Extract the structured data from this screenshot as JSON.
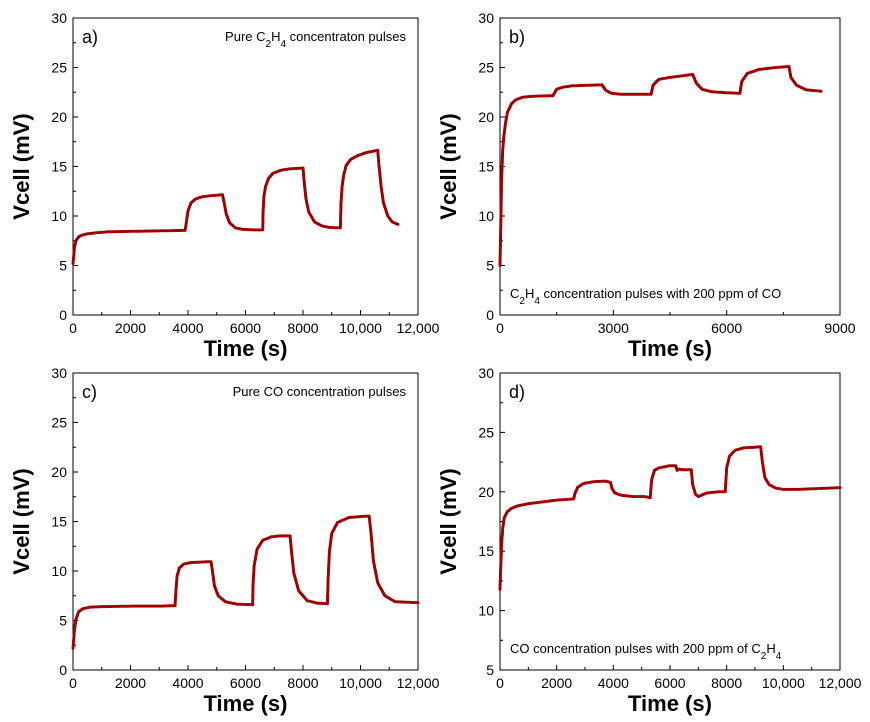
{
  "figure": {
    "series_color": "#a00000",
    "axis_color": "#000000"
  },
  "chart_data": [
    {
      "type": "scatter",
      "panel_label": "a)",
      "annotation": [
        {
          "t": "Pure C"
        },
        {
          "t": "2",
          "sub": true
        },
        {
          "t": "H"
        },
        {
          "t": "4",
          "sub": true
        },
        {
          "t": " concentraton pulses"
        }
      ],
      "annotation_pos": "top-right",
      "xlabel": "Time (s)",
      "ylabel": "Vcell (mV)",
      "xlim": [
        0,
        12000
      ],
      "ylim": [
        0,
        30
      ],
      "xticks": [
        0,
        2000,
        4000,
        6000,
        8000,
        10000,
        12000
      ],
      "xtick_labels": [
        "0",
        "2000",
        "4000",
        "6000",
        "8000",
        "10,000",
        "12,000"
      ],
      "xminor": true,
      "yticks": [
        0,
        5,
        10,
        15,
        20,
        25,
        30
      ],
      "ytick_labels": [
        "0",
        "5",
        "10",
        "15",
        "20",
        "25",
        "30"
      ],
      "yminor": true,
      "grid": false,
      "series": [
        {
          "color": "#a00000",
          "x": [
            0,
            50,
            100,
            200,
            300,
            500,
            800,
            1200,
            2000,
            3000,
            3900,
            3950,
            4000,
            4100,
            4250,
            4500,
            4800,
            5200,
            5260,
            5330,
            5450,
            5650,
            5900,
            6300,
            6600,
            6610,
            6640,
            6700,
            6800,
            6950,
            7200,
            7500,
            8000,
            8040,
            8100,
            8200,
            8400,
            8650,
            8900,
            9300,
            9320,
            9360,
            9420,
            9500,
            9650,
            9900,
            10200,
            10600,
            10640,
            10720,
            10800,
            10950,
            11100,
            11300
          ],
          "y": [
            5.2,
            6.8,
            7.5,
            7.9,
            8.05,
            8.2,
            8.3,
            8.4,
            8.45,
            8.5,
            8.55,
            9.5,
            10.5,
            11.3,
            11.7,
            11.95,
            12.05,
            12.15,
            11.3,
            10.2,
            9.3,
            8.8,
            8.65,
            8.6,
            8.6,
            10.3,
            12.0,
            13.0,
            13.8,
            14.3,
            14.6,
            14.75,
            14.85,
            13.5,
            11.8,
            10.4,
            9.4,
            9.0,
            8.85,
            8.8,
            11.2,
            13.0,
            14.2,
            15.1,
            15.7,
            16.1,
            16.4,
            16.65,
            15.2,
            12.9,
            11.3,
            10.0,
            9.4,
            9.15
          ]
        }
      ]
    },
    {
      "type": "scatter",
      "panel_label": "b)",
      "annotation": [
        {
          "t": "C"
        },
        {
          "t": "2",
          "sub": true
        },
        {
          "t": "H"
        },
        {
          "t": "4",
          "sub": true
        },
        {
          "t": " concentration pulses with 200 ppm of CO"
        }
      ],
      "annotation_pos": "bottom-left",
      "xlabel": "Time (s)",
      "ylabel": "Vcell (mV)",
      "xlim": [
        0,
        9000
      ],
      "ylim": [
        0,
        30
      ],
      "xticks": [
        0,
        3000,
        6000,
        9000
      ],
      "xtick_labels": [
        "0",
        "3000",
        "6000",
        "9000"
      ],
      "xminor": true,
      "yticks": [
        0,
        5,
        10,
        15,
        20,
        25,
        30
      ],
      "ytick_labels": [
        "0",
        "5",
        "10",
        "15",
        "20",
        "25",
        "30"
      ],
      "yminor": true,
      "grid": false,
      "series": [
        {
          "color": "#a00000",
          "x": [
            0,
            20,
            40,
            70,
            100,
            150,
            200,
            300,
            400,
            600,
            900,
            1400,
            1500,
            1650,
            1900,
            2300,
            2700,
            2800,
            2950,
            3200,
            3600,
            4000,
            4050,
            4200,
            4500,
            5100,
            5200,
            5350,
            5600,
            6000,
            6350,
            6400,
            6550,
            6850,
            7300,
            7650,
            7700,
            7850,
            8100,
            8500
          ],
          "y": [
            5.0,
            9.0,
            13.5,
            16.5,
            18.0,
            19.5,
            20.5,
            21.3,
            21.7,
            22.0,
            22.1,
            22.15,
            22.8,
            23.0,
            23.15,
            23.2,
            23.25,
            22.7,
            22.4,
            22.3,
            22.3,
            22.3,
            23.2,
            23.8,
            24.0,
            24.3,
            23.4,
            22.8,
            22.55,
            22.45,
            22.4,
            23.6,
            24.4,
            24.8,
            25.0,
            25.1,
            24.0,
            23.2,
            22.75,
            22.6
          ]
        }
      ]
    },
    {
      "type": "scatter",
      "panel_label": "c)",
      "annotation": [
        {
          "t": "Pure CO concentration pulses"
        }
      ],
      "annotation_pos": "top-right",
      "xlabel": "Time (s)",
      "ylabel": "Vcell (mV)",
      "xlim": [
        0,
        12000
      ],
      "ylim": [
        0,
        30
      ],
      "xticks": [
        0,
        2000,
        4000,
        6000,
        8000,
        10000,
        12000
      ],
      "xtick_labels": [
        "0",
        "2000",
        "4000",
        "6000",
        "8000",
        "10,000",
        "12,000"
      ],
      "xminor": true,
      "yticks": [
        0,
        5,
        10,
        15,
        20,
        25,
        30
      ],
      "ytick_labels": [
        "0",
        "5",
        "10",
        "15",
        "20",
        "25",
        "30"
      ],
      "yminor": true,
      "grid": false,
      "series": [
        {
          "color": "#a00000",
          "x": [
            0,
            50,
            100,
            200,
            350,
            600,
            1000,
            2000,
            3000,
            3550,
            3580,
            3620,
            3700,
            3850,
            4100,
            4450,
            4800,
            4850,
            4920,
            5050,
            5300,
            5700,
            6250,
            6260,
            6300,
            6400,
            6600,
            6900,
            7200,
            7550,
            7600,
            7680,
            7850,
            8150,
            8500,
            8850,
            8870,
            8920,
            9000,
            9200,
            9600,
            10000,
            10300,
            10360,
            10450,
            10600,
            10850,
            11200,
            12000
          ],
          "y": [
            2.2,
            4.0,
            5.1,
            5.9,
            6.2,
            6.35,
            6.4,
            6.45,
            6.45,
            6.5,
            8.0,
            9.5,
            10.3,
            10.7,
            10.85,
            10.9,
            10.95,
            10.0,
            8.5,
            7.5,
            6.9,
            6.65,
            6.6,
            8.5,
            10.5,
            12.2,
            13.1,
            13.45,
            13.55,
            13.55,
            12.0,
            9.8,
            8.0,
            7.0,
            6.75,
            6.7,
            9.0,
            12.0,
            13.8,
            14.9,
            15.4,
            15.5,
            15.55,
            14.0,
            11.0,
            8.8,
            7.5,
            6.9,
            6.8
          ]
        }
      ]
    },
    {
      "type": "scatter",
      "panel_label": "d)",
      "annotation": [
        {
          "t": "CO concentration pulses with 200 ppm of C"
        },
        {
          "t": "2",
          "sub": true
        },
        {
          "t": "H"
        },
        {
          "t": "4",
          "sub": true
        }
      ],
      "annotation_pos": "bottom-left",
      "xlabel": "Time (s)",
      "ylabel": "Vcell (mV)",
      "xlim": [
        0,
        12000
      ],
      "ylim": [
        5,
        30
      ],
      "xticks": [
        0,
        2000,
        4000,
        6000,
        8000,
        10000,
        12000
      ],
      "xtick_labels": [
        "0",
        "2000",
        "4000",
        "6000",
        "8000",
        "10,000",
        "12,000"
      ],
      "xminor": true,
      "yticks": [
        5,
        10,
        15,
        20,
        25,
        30
      ],
      "ytick_labels": [
        "5",
        "10",
        "15",
        "20",
        "25",
        "30"
      ],
      "yminor": true,
      "grid": false,
      "series": [
        {
          "color": "#a00000",
          "x": [
            0,
            30,
            60,
            100,
            150,
            250,
            400,
            600,
            1000,
            1500,
            2000,
            2600,
            2650,
            2750,
            2950,
            3300,
            3700,
            3900,
            3950,
            4050,
            4300,
            4700,
            5100,
            5300,
            5350,
            5450,
            5600,
            5800,
            6000,
            6200,
            6250,
            6300,
            6500,
            6750,
            6800,
            6900,
            7000,
            7300,
            7700,
            7950,
            8000,
            8100,
            8300,
            8600,
            9000,
            9200,
            9260,
            9350,
            9500,
            9750,
            10000,
            10500,
            11000,
            11500,
            12000
          ],
          "y": [
            11.8,
            14.0,
            15.8,
            17.0,
            17.8,
            18.3,
            18.6,
            18.8,
            19.0,
            19.15,
            19.3,
            19.4,
            19.9,
            20.4,
            20.7,
            20.85,
            20.9,
            20.8,
            20.3,
            19.9,
            19.7,
            19.6,
            19.6,
            19.5,
            21.0,
            21.8,
            22.0,
            22.1,
            22.2,
            22.2,
            21.8,
            21.9,
            21.85,
            21.85,
            20.6,
            19.8,
            19.6,
            19.9,
            20.0,
            20.0,
            22.0,
            23.0,
            23.5,
            23.7,
            23.75,
            23.8,
            22.5,
            21.2,
            20.6,
            20.3,
            20.2,
            20.2,
            20.25,
            20.3,
            20.35
          ]
        }
      ]
    }
  ]
}
